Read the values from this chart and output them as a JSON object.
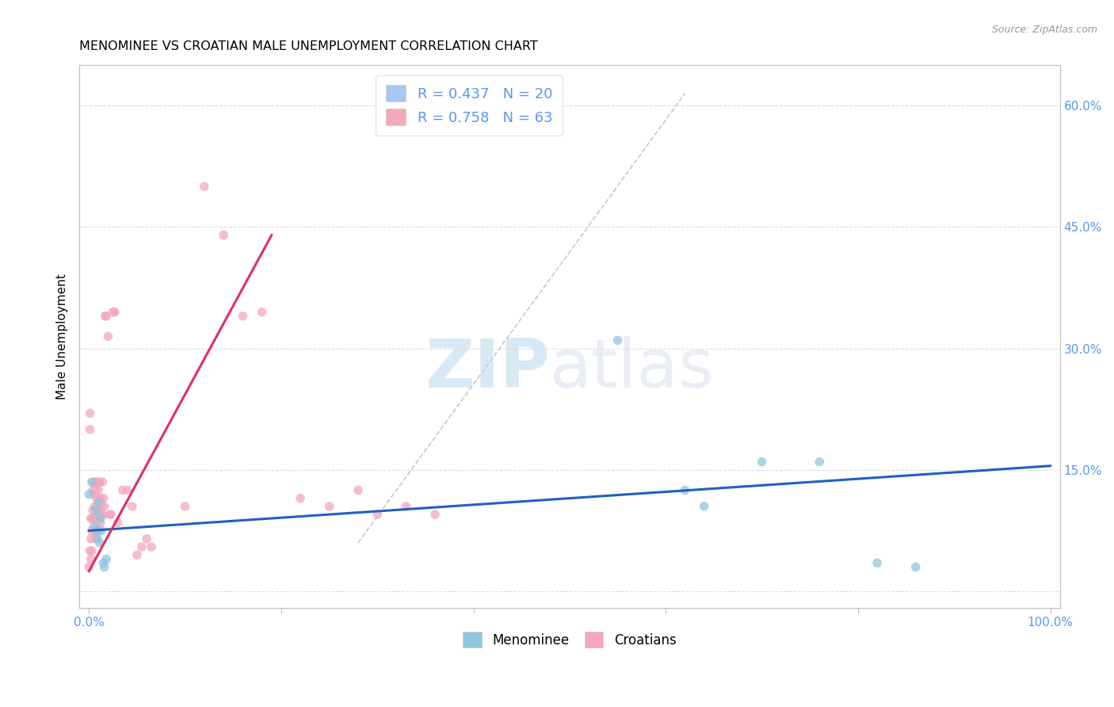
{
  "title": "MENOMINEE VS CROATIAN MALE UNEMPLOYMENT CORRELATION CHART",
  "source": "Source: ZipAtlas.com",
  "ylabel": "Male Unemployment",
  "xlim": [
    -0.01,
    1.01
  ],
  "ylim": [
    -0.02,
    0.65
  ],
  "y_ticks": [
    0.0,
    0.15,
    0.3,
    0.45,
    0.6
  ],
  "y_tick_labels": [
    "",
    "15.0%",
    "30.0%",
    "45.0%",
    "60.0%"
  ],
  "watermark_zip": "ZIP",
  "watermark_atlas": "atlas",
  "legend_r1": "R = 0.437   N = 20",
  "legend_r2": "R = 0.758   N = 63",
  "legend_color1": "#a8c8f0",
  "legend_color2": "#f5a8b8",
  "menominee_scatter": [
    [
      0.0,
      0.12
    ],
    [
      0.003,
      0.135
    ],
    [
      0.005,
      0.08
    ],
    [
      0.007,
      0.1
    ],
    [
      0.008,
      0.075
    ],
    [
      0.009,
      0.065
    ],
    [
      0.01,
      0.11
    ],
    [
      0.011,
      0.06
    ],
    [
      0.012,
      0.09
    ],
    [
      0.013,
      0.075
    ],
    [
      0.015,
      0.035
    ],
    [
      0.016,
      0.03
    ],
    [
      0.018,
      0.04
    ],
    [
      0.55,
      0.31
    ],
    [
      0.62,
      0.125
    ],
    [
      0.64,
      0.105
    ],
    [
      0.7,
      0.16
    ],
    [
      0.76,
      0.16
    ],
    [
      0.82,
      0.035
    ],
    [
      0.86,
      0.03
    ]
  ],
  "croatian_scatter": [
    [
      0.0,
      0.03
    ],
    [
      0.001,
      0.05
    ],
    [
      0.001,
      0.22
    ],
    [
      0.001,
      0.2
    ],
    [
      0.002,
      0.04
    ],
    [
      0.002,
      0.065
    ],
    [
      0.002,
      0.09
    ],
    [
      0.003,
      0.075
    ],
    [
      0.003,
      0.05
    ],
    [
      0.003,
      0.09
    ],
    [
      0.004,
      0.1
    ],
    [
      0.004,
      0.125
    ],
    [
      0.005,
      0.135
    ],
    [
      0.005,
      0.09
    ],
    [
      0.005,
      0.12
    ],
    [
      0.006,
      0.075
    ],
    [
      0.006,
      0.105
    ],
    [
      0.007,
      0.135
    ],
    [
      0.007,
      0.125
    ],
    [
      0.007,
      0.065
    ],
    [
      0.008,
      0.085
    ],
    [
      0.008,
      0.115
    ],
    [
      0.009,
      0.095
    ],
    [
      0.009,
      0.135
    ],
    [
      0.009,
      0.105
    ],
    [
      0.01,
      0.075
    ],
    [
      0.01,
      0.125
    ],
    [
      0.011,
      0.095
    ],
    [
      0.011,
      0.135
    ],
    [
      0.012,
      0.085
    ],
    [
      0.012,
      0.115
    ],
    [
      0.013,
      0.105
    ],
    [
      0.013,
      0.095
    ],
    [
      0.014,
      0.135
    ],
    [
      0.015,
      0.095
    ],
    [
      0.015,
      0.115
    ],
    [
      0.016,
      0.105
    ],
    [
      0.017,
      0.34
    ],
    [
      0.018,
      0.34
    ],
    [
      0.02,
      0.315
    ],
    [
      0.022,
      0.095
    ],
    [
      0.023,
      0.095
    ],
    [
      0.025,
      0.345
    ],
    [
      0.027,
      0.345
    ],
    [
      0.03,
      0.085
    ],
    [
      0.035,
      0.125
    ],
    [
      0.04,
      0.125
    ],
    [
      0.045,
      0.105
    ],
    [
      0.05,
      0.045
    ],
    [
      0.055,
      0.055
    ],
    [
      0.06,
      0.065
    ],
    [
      0.065,
      0.055
    ],
    [
      0.1,
      0.105
    ],
    [
      0.12,
      0.5
    ],
    [
      0.14,
      0.44
    ],
    [
      0.16,
      0.34
    ],
    [
      0.18,
      0.345
    ],
    [
      0.22,
      0.115
    ],
    [
      0.25,
      0.105
    ],
    [
      0.28,
      0.125
    ],
    [
      0.3,
      0.095
    ],
    [
      0.33,
      0.105
    ],
    [
      0.36,
      0.095
    ]
  ],
  "menominee_line": {
    "x0": 0.0,
    "y0": 0.075,
    "x1": 1.0,
    "y1": 0.155
  },
  "croatian_line": {
    "x0": 0.0,
    "y0": 0.025,
    "x1": 0.19,
    "y1": 0.44
  },
  "diagonal_line": {
    "x0": 0.28,
    "y0": 0.06,
    "x1": 0.62,
    "y1": 0.615
  },
  "menominee_color": "#92c5de",
  "croatian_color": "#f4a6c0",
  "menominee_line_color": "#2060c0",
  "croatian_line_color": "#e03060",
  "diagonal_color": "#c8c8c8",
  "scatter_size": 70,
  "background_color": "#ffffff",
  "grid_color": "#dddddd",
  "tick_color": "#5599ee",
  "axis_color": "#bbbbbb"
}
